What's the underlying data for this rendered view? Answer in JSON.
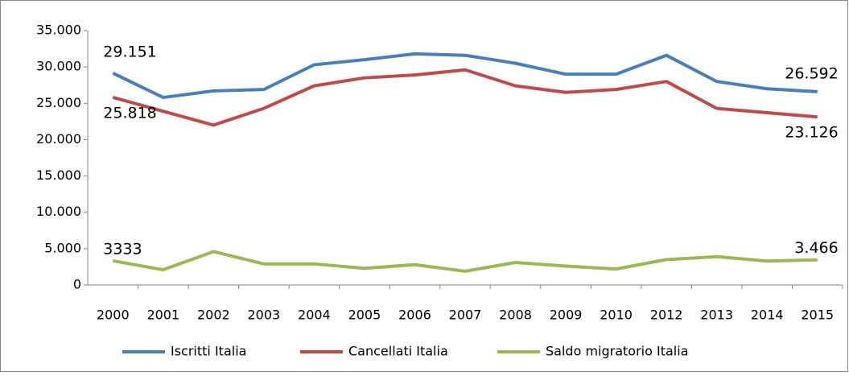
{
  "chart_data": {
    "type": "line",
    "categories": [
      "2000",
      "2001",
      "2002",
      "2003",
      "2004",
      "2005",
      "2006",
      "2007",
      "2008",
      "2009",
      "2010",
      "2012",
      "2013",
      "2014",
      "2015"
    ],
    "series": [
      {
        "name": "Iscritti Italia",
        "color": "#4a7ebb",
        "values": [
          29151,
          25800,
          26700,
          26900,
          30300,
          31000,
          31800,
          31600,
          30500,
          29000,
          29000,
          31600,
          28000,
          27000,
          26592
        ],
        "value_labels": [
          "29.151",
          null,
          null,
          null,
          null,
          null,
          null,
          null,
          null,
          null,
          null,
          null,
          null,
          null,
          "26.592"
        ]
      },
      {
        "name": "Cancellati Italia",
        "color": "#be4b48",
        "values": [
          25818,
          23900,
          22000,
          24300,
          27400,
          28500,
          28900,
          29600,
          27400,
          26500,
          26900,
          28000,
          24300,
          23700,
          23126
        ],
        "value_labels": [
          "25.818",
          null,
          null,
          null,
          null,
          null,
          null,
          null,
          null,
          null,
          null,
          null,
          null,
          null,
          "23.126"
        ]
      },
      {
        "name": "Saldo migratorio Italia",
        "color": "#98b954",
        "values": [
          3333,
          2100,
          4600,
          2900,
          2900,
          2300,
          2800,
          1900,
          3100,
          2600,
          2200,
          3500,
          3900,
          3300,
          3466
        ],
        "value_labels": [
          "3333",
          null,
          null,
          null,
          null,
          null,
          null,
          null,
          null,
          null,
          null,
          null,
          null,
          null,
          "3.466"
        ]
      }
    ],
    "ylim": [
      0,
      35000
    ],
    "yticks": [
      0,
      {
        "value": 5000,
        "label": "5.000"
      },
      {
        "value": 10000,
        "label": "10.000"
      },
      {
        "value": 15000,
        "label": "15.000"
      },
      {
        "value": 20000,
        "label": "20.000"
      },
      {
        "value": 25000,
        "label": "25.000"
      },
      {
        "value": 30000,
        "label": "30.000"
      },
      {
        "value": 35000,
        "label": "35.000"
      }
    ],
    "legend": "bottom"
  }
}
